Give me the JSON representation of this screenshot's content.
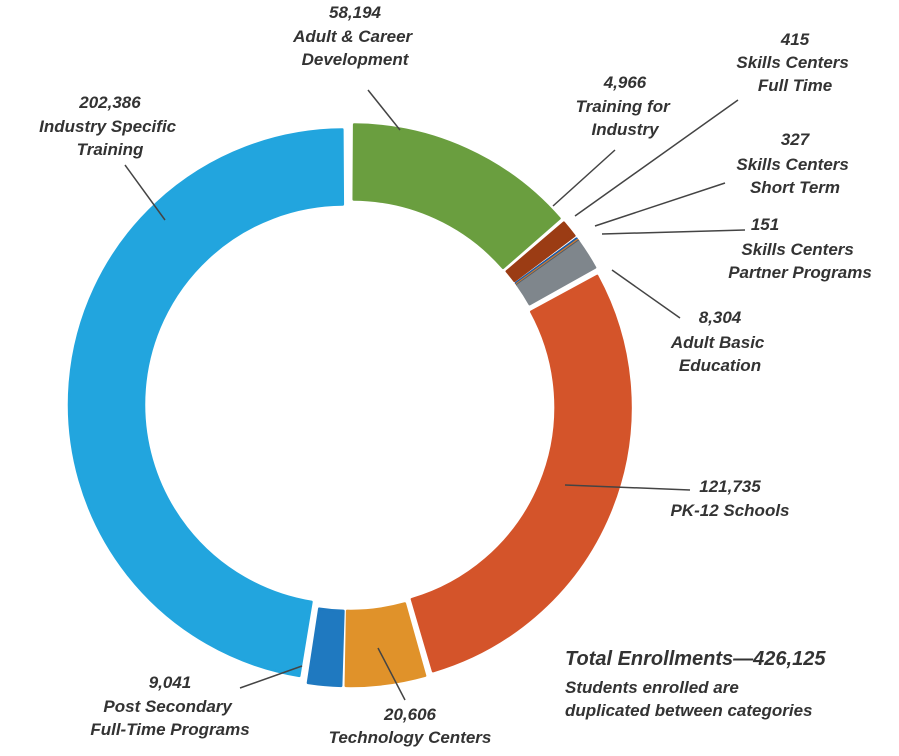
{
  "chart_data": {
    "type": "donut",
    "categories": [
      "Adult & Career Development",
      "Training for Industry",
      "Skills Centers Full Time",
      "Skills Centers Short Term",
      "Skills Centers Partner Programs",
      "Adult Basic Education",
      "PK-12 Schools",
      "Technology Centers",
      "Post Secondary Full-Time Programs",
      "Industry Specific Training"
    ],
    "values": [
      58194,
      4966,
      415,
      327,
      151,
      8304,
      121735,
      20606,
      9041,
      202386
    ],
    "value_labels": [
      "58,194",
      "4,966",
      "415",
      "327",
      "151",
      "8,304",
      "121,735",
      "20,606",
      "9,041",
      "202,386"
    ],
    "colors": [
      "#6a9e3f",
      "#9b3c14",
      "#1a5aa6",
      "#c87a35",
      "#4f5a66",
      "#7f868c",
      "#d4542a",
      "#e0922a",
      "#1f79c0",
      "#22a5de"
    ],
    "annotations": [
      "Total Enrollments—426,125",
      "Students enrolled are duplicated between categories"
    ]
  }
}
